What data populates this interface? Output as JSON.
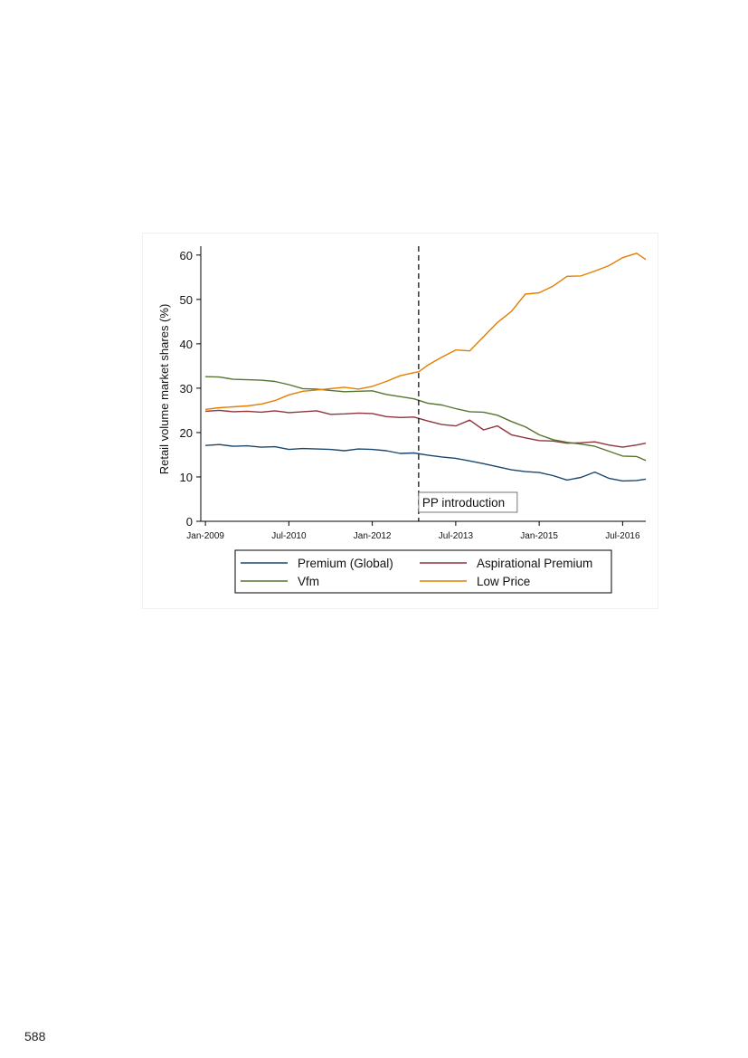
{
  "page": {
    "page_number": "588"
  },
  "chart_data": {
    "type": "line",
    "xlabel": "",
    "ylabel": "Retail volume market shares (%)",
    "ylim": [
      0,
      62
    ],
    "yticks": [
      0,
      10,
      20,
      30,
      40,
      50,
      60
    ],
    "xlim": [
      "2008-12",
      "2016-12"
    ],
    "xticks": [
      {
        "date": "2009-01",
        "label": "Jan-2009"
      },
      {
        "date": "2010-07",
        "label": "Jul-2010"
      },
      {
        "date": "2012-01",
        "label": "Jan-2012"
      },
      {
        "date": "2013-07",
        "label": "Jul-2013"
      },
      {
        "date": "2015-01",
        "label": "Jan-2015"
      },
      {
        "date": "2016-07",
        "label": "Jul-2016"
      }
    ],
    "grid": false,
    "legend_position": "bottom",
    "annotation": {
      "date": "2012-11",
      "label": "PP introduction",
      "style": "dashed vertical line"
    },
    "series": [
      {
        "name": "Premium (Global)",
        "color": "#1a476f",
        "points": [
          [
            "2009-01",
            17.1
          ],
          [
            "2009-04",
            17.3
          ],
          [
            "2009-07",
            16.9
          ],
          [
            "2009-10",
            17.0
          ],
          [
            "2010-01",
            16.7
          ],
          [
            "2010-04",
            16.8
          ],
          [
            "2010-07",
            16.2
          ],
          [
            "2010-10",
            16.4
          ],
          [
            "2011-01",
            16.3
          ],
          [
            "2011-04",
            16.2
          ],
          [
            "2011-07",
            15.9
          ],
          [
            "2011-10",
            16.3
          ],
          [
            "2012-01",
            16.2
          ],
          [
            "2012-04",
            15.9
          ],
          [
            "2012-07",
            15.3
          ],
          [
            "2012-10",
            15.4
          ],
          [
            "2013-01",
            14.9
          ],
          [
            "2013-04",
            14.5
          ],
          [
            "2013-07",
            14.2
          ],
          [
            "2013-10",
            13.6
          ],
          [
            "2014-01",
            13.0
          ],
          [
            "2014-04",
            12.3
          ],
          [
            "2014-07",
            11.6
          ],
          [
            "2014-10",
            11.2
          ],
          [
            "2015-01",
            11.0
          ],
          [
            "2015-04",
            10.3
          ],
          [
            "2015-07",
            9.3
          ],
          [
            "2015-10",
            9.9
          ],
          [
            "2016-01",
            11.1
          ],
          [
            "2016-04",
            9.7
          ],
          [
            "2016-07",
            9.1
          ],
          [
            "2016-10",
            9.2
          ],
          [
            "2016-12",
            9.5
          ]
        ]
      },
      {
        "name": "Aspirational Premium",
        "color": "#90353b",
        "points": [
          [
            "2009-01",
            24.8
          ],
          [
            "2009-04",
            25.0
          ],
          [
            "2009-07",
            24.7
          ],
          [
            "2009-10",
            24.8
          ],
          [
            "2010-01",
            24.6
          ],
          [
            "2010-04",
            24.9
          ],
          [
            "2010-07",
            24.5
          ],
          [
            "2010-10",
            24.7
          ],
          [
            "2011-01",
            24.9
          ],
          [
            "2011-04",
            24.1
          ],
          [
            "2011-07",
            24.2
          ],
          [
            "2011-10",
            24.4
          ],
          [
            "2012-01",
            24.3
          ],
          [
            "2012-04",
            23.6
          ],
          [
            "2012-07",
            23.4
          ],
          [
            "2012-10",
            23.5
          ],
          [
            "2013-01",
            22.6
          ],
          [
            "2013-04",
            21.8
          ],
          [
            "2013-07",
            21.5
          ],
          [
            "2013-10",
            22.8
          ],
          [
            "2014-01",
            20.6
          ],
          [
            "2014-04",
            21.5
          ],
          [
            "2014-07",
            19.5
          ],
          [
            "2014-10",
            18.8
          ],
          [
            "2015-01",
            18.2
          ],
          [
            "2015-04",
            18.1
          ],
          [
            "2015-07",
            17.6
          ],
          [
            "2015-10",
            17.7
          ],
          [
            "2016-01",
            17.9
          ],
          [
            "2016-04",
            17.2
          ],
          [
            "2016-07",
            16.7
          ],
          [
            "2016-10",
            17.2
          ],
          [
            "2016-12",
            17.6
          ]
        ]
      },
      {
        "name": "Vfm",
        "color": "#55752f",
        "points": [
          [
            "2009-01",
            32.6
          ],
          [
            "2009-04",
            32.5
          ],
          [
            "2009-07",
            32.0
          ],
          [
            "2009-10",
            31.9
          ],
          [
            "2010-01",
            31.8
          ],
          [
            "2010-04",
            31.5
          ],
          [
            "2010-07",
            30.8
          ],
          [
            "2010-10",
            29.9
          ],
          [
            "2011-01",
            29.8
          ],
          [
            "2011-04",
            29.5
          ],
          [
            "2011-07",
            29.2
          ],
          [
            "2011-10",
            29.3
          ],
          [
            "2012-01",
            29.4
          ],
          [
            "2012-04",
            28.6
          ],
          [
            "2012-07",
            28.1
          ],
          [
            "2012-10",
            27.6
          ],
          [
            "2013-01",
            26.6
          ],
          [
            "2013-04",
            26.2
          ],
          [
            "2013-07",
            25.4
          ],
          [
            "2013-10",
            24.7
          ],
          [
            "2014-01",
            24.6
          ],
          [
            "2014-04",
            23.9
          ],
          [
            "2014-07",
            22.5
          ],
          [
            "2014-10",
            21.3
          ],
          [
            "2015-01",
            19.5
          ],
          [
            "2015-04",
            18.4
          ],
          [
            "2015-07",
            17.8
          ],
          [
            "2015-10",
            17.4
          ],
          [
            "2016-01",
            16.9
          ],
          [
            "2016-04",
            15.8
          ],
          [
            "2016-07",
            14.7
          ],
          [
            "2016-10",
            14.6
          ],
          [
            "2016-12",
            13.7
          ]
        ]
      },
      {
        "name": "Low Price",
        "color": "#e37e00",
        "points": [
          [
            "2009-01",
            25.2
          ],
          [
            "2009-04",
            25.6
          ],
          [
            "2009-07",
            25.8
          ],
          [
            "2009-10",
            26.0
          ],
          [
            "2010-01",
            26.4
          ],
          [
            "2010-04",
            27.2
          ],
          [
            "2010-07",
            28.5
          ],
          [
            "2010-10",
            29.3
          ],
          [
            "2011-01",
            29.6
          ],
          [
            "2011-04",
            29.9
          ],
          [
            "2011-07",
            30.2
          ],
          [
            "2011-10",
            29.8
          ],
          [
            "2012-01",
            30.4
          ],
          [
            "2012-04",
            31.5
          ],
          [
            "2012-07",
            32.8
          ],
          [
            "2012-10",
            33.5
          ],
          [
            "2012-11",
            33.7
          ],
          [
            "2013-01",
            35.2
          ],
          [
            "2013-04",
            37.0
          ],
          [
            "2013-07",
            38.6
          ],
          [
            "2013-10",
            38.4
          ],
          [
            "2014-01",
            41.6
          ],
          [
            "2014-04",
            44.8
          ],
          [
            "2014-07",
            47.3
          ],
          [
            "2014-10",
            51.2
          ],
          [
            "2015-01",
            51.5
          ],
          [
            "2015-04",
            53.0
          ],
          [
            "2015-07",
            55.2
          ],
          [
            "2015-10",
            55.3
          ],
          [
            "2016-01",
            56.4
          ],
          [
            "2016-04",
            57.6
          ],
          [
            "2016-07",
            59.4
          ],
          [
            "2016-10",
            60.4
          ],
          [
            "2016-12",
            59.0
          ]
        ]
      }
    ]
  }
}
